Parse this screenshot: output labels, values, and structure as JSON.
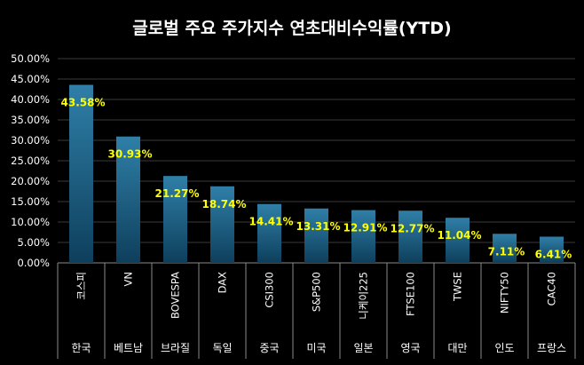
{
  "chart_data": {
    "type": "bar",
    "title": "글로벌 주요 주가지수 연초대비수익률(YTD)",
    "categories": [
      "코스피",
      "VN",
      "BOVESPA",
      "DAX",
      "CSI300",
      "S&P500",
      "니케이225",
      "FTSE100",
      "TWSE",
      "NIFTY50",
      "CAC40"
    ],
    "countries": [
      "한국",
      "베트남",
      "브라질",
      "독일",
      "중국",
      "미국",
      "일본",
      "영국",
      "대만",
      "인도",
      "프랑스"
    ],
    "values": [
      43.58,
      30.93,
      21.27,
      18.74,
      14.41,
      13.31,
      12.91,
      12.77,
      11.04,
      7.11,
      6.41
    ],
    "value_labels": [
      "43.58%",
      "30.93%",
      "21.27%",
      "18.74%",
      "14.41%",
      "13.31%",
      "12.91%",
      "12.77%",
      "11.04%",
      "7.11%",
      "6.41%"
    ],
    "yticks": [
      "0.00%",
      "5.00%",
      "10.00%",
      "15.00%",
      "20.00%",
      "25.00%",
      "30.00%",
      "35.00%",
      "40.00%",
      "45.00%",
      "50.00%"
    ],
    "ylim": [
      0,
      50
    ],
    "grid": true,
    "colors": {
      "background": "#000000",
      "bar_top": "#2f7fa8",
      "bar_bottom": "#0e3f5c",
      "grid": "#3a3a3a",
      "value_label": "#ffff00",
      "text": "#ffffff"
    }
  }
}
